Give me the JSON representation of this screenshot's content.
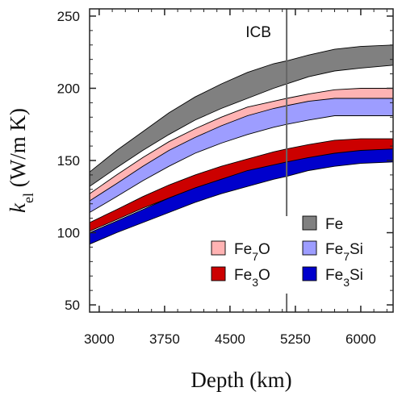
{
  "chart_data": {
    "type": "area",
    "xlabel": "Depth (km)",
    "ylabel_main": "k",
    "ylabel_sub": "el",
    "ylabel_unit": " (W/m K)",
    "xlim": [
      2890,
      6371
    ],
    "ylim": [
      45,
      255
    ],
    "xticks": [
      3000,
      3750,
      4500,
      5250,
      6000
    ],
    "yticks": [
      50,
      100,
      150,
      200,
      250
    ],
    "grid": false,
    "legend_position": "lower-right",
    "x": [
      2890,
      3200,
      3500,
      3800,
      4100,
      4400,
      4700,
      5000,
      5150,
      5400,
      5700,
      6000,
      6371
    ],
    "series": [
      {
        "name": "Fe",
        "name_sub": "",
        "name_sub2": "",
        "color": "#808080",
        "upper": [
          142,
          157,
          170,
          183,
          194,
          203,
          211,
          217,
          219,
          223,
          227,
          229,
          230
        ],
        "lower": [
          132,
          145,
          157,
          168,
          178,
          186,
          193,
          200,
          203,
          208,
          212,
          214,
          216
        ]
      },
      {
        "name": "Fe",
        "name_sub": "7",
        "name_sub2": "O",
        "color": "#ffb3b3",
        "upper": [
          127,
          140,
          152,
          163,
          172,
          180,
          187,
          191,
          193,
          196,
          199,
          200,
          200
        ],
        "lower": [
          120,
          133,
          144,
          154,
          163,
          170,
          176,
          181,
          183,
          187,
          190,
          192,
          192
        ]
      },
      {
        "name": "Fe",
        "name_sub": "7",
        "name_sub2": "Si",
        "color": "#9d9dff",
        "upper": [
          122,
          134,
          146,
          157,
          166,
          174,
          181,
          186,
          188,
          191,
          193,
          193,
          193
        ],
        "lower": [
          114,
          125,
          136,
          146,
          155,
          162,
          168,
          173,
          175,
          178,
          181,
          181,
          181
        ]
      },
      {
        "name": "Fe",
        "name_sub": "3",
        "name_sub2": "O",
        "color": "#cc0000",
        "upper": [
          107,
          116,
          125,
          133,
          140,
          146,
          151,
          156,
          158,
          161,
          164,
          165,
          165
        ],
        "lower": [
          101,
          109,
          117,
          124,
          131,
          137,
          142,
          146,
          148,
          151,
          154,
          155,
          155
        ]
      },
      {
        "name": "Fe",
        "name_sub": "3",
        "name_sub2": "Si",
        "color": "#0000cc",
        "upper": [
          100,
          108,
          116,
          124,
          131,
          137,
          143,
          147,
          149,
          152,
          155,
          157,
          158
        ],
        "lower": [
          92,
          100,
          107,
          114,
          121,
          127,
          132,
          137,
          139,
          143,
          146,
          148,
          149
        ]
      }
    ],
    "annotation": {
      "label": "ICB",
      "x": 5150
    }
  }
}
